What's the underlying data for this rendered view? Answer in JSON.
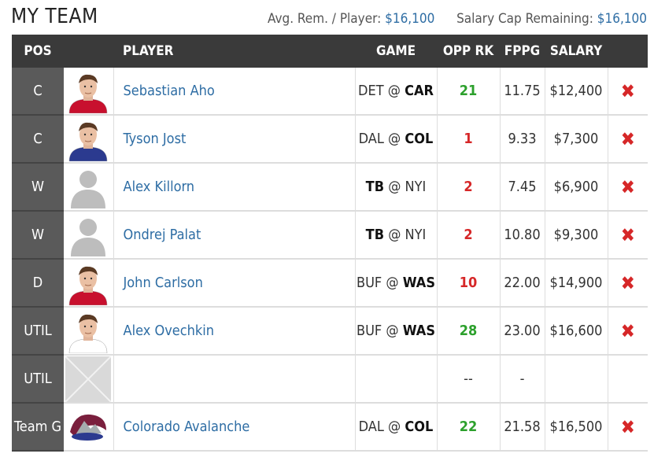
{
  "header": {
    "title": "MY TEAM",
    "avg_label": "Avg. Rem. / Player:",
    "avg_value": "$16,100",
    "cap_label": "Salary Cap Remaining:",
    "cap_value": "$16,100"
  },
  "columns": {
    "pos": "POS",
    "player": "PLAYER",
    "game": "GAME",
    "opp_rk": "OPP RK",
    "fppg": "FPPG",
    "salary": "SALARY"
  },
  "rows": [
    {
      "pos": "C",
      "player": "Sebastian Aho",
      "away": "DET",
      "home": "CAR",
      "bold": "home",
      "opp_rk": "21",
      "rk_class": "good",
      "fppg": "11.75",
      "salary": "$12,400",
      "photo": "player-photo",
      "jersey": "#c8102e"
    },
    {
      "pos": "C",
      "player": "Tyson Jost",
      "away": "DAL",
      "home": "COL",
      "bold": "home",
      "opp_rk": "1",
      "rk_class": "bad",
      "fppg": "9.33",
      "salary": "$7,300",
      "photo": "player-photo",
      "jersey": "#2b3a8f"
    },
    {
      "pos": "W",
      "player": "Alex Killorn",
      "away": "TB",
      "home": "NYI",
      "bold": "away",
      "opp_rk": "2",
      "rk_class": "bad",
      "fppg": "7.45",
      "salary": "$6,900",
      "photo": "silhouette"
    },
    {
      "pos": "W",
      "player": "Ondrej Palat",
      "away": "TB",
      "home": "NYI",
      "bold": "away",
      "opp_rk": "2",
      "rk_class": "bad",
      "fppg": "10.80",
      "salary": "$9,300",
      "photo": "silhouette"
    },
    {
      "pos": "D",
      "player": "John Carlson",
      "away": "BUF",
      "home": "WAS",
      "bold": "home",
      "opp_rk": "10",
      "rk_class": "bad",
      "fppg": "22.00",
      "salary": "$14,900",
      "photo": "player-photo",
      "jersey": "#c8102e"
    },
    {
      "pos": "UTIL",
      "player": "Alex Ovechkin",
      "away": "BUF",
      "home": "WAS",
      "bold": "home",
      "opp_rk": "28",
      "rk_class": "good",
      "fppg": "23.00",
      "salary": "$16,600",
      "photo": "player-photo",
      "jersey": "#ffffff"
    },
    {
      "pos": "UTIL",
      "player": "",
      "away": "",
      "home": "",
      "bold": "",
      "opp_rk": "--",
      "rk_class": "neutral",
      "fppg": "-",
      "salary": "",
      "photo": "empty"
    },
    {
      "pos": "Team G",
      "player": "Colorado Avalanche",
      "away": "DAL",
      "home": "COL",
      "bold": "home",
      "opp_rk": "22",
      "rk_class": "good",
      "fppg": "21.58",
      "salary": "$16,500",
      "photo": "team-logo"
    }
  ],
  "remove_icon": "close-icon",
  "colors": {
    "link": "#2e6da4",
    "good": "#2ca02c",
    "bad": "#d62728",
    "header_bg": "#3a3a3a",
    "pos_bg": "#5a5a5a"
  }
}
